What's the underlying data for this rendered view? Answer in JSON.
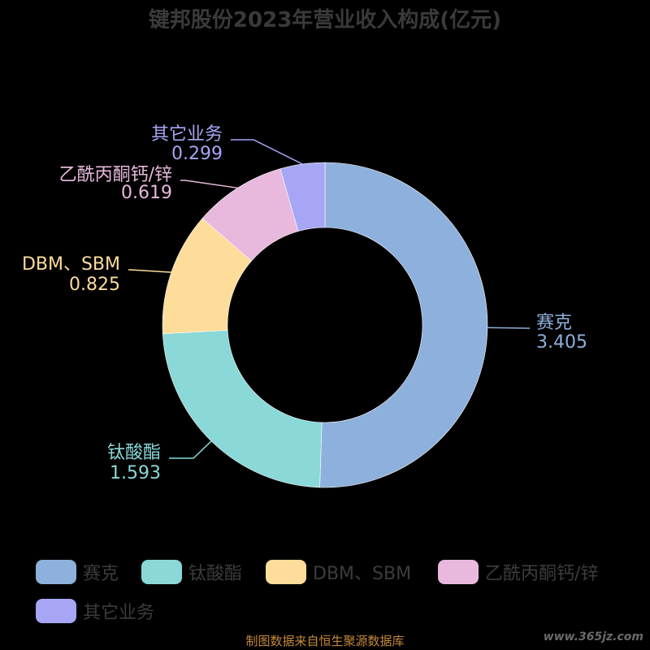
{
  "chart_data": {
    "type": "pie",
    "title": "键邦股份2023年营业收入构成(亿元)",
    "categories": [
      "赛克",
      "钛酸酯",
      "DBM、SBM",
      "乙酰丙酮钙/锌",
      "其它业务"
    ],
    "values": [
      3.405,
      1.593,
      0.825,
      0.619,
      0.299
    ],
    "value_labels": [
      "3.405",
      "1.593",
      "0.825",
      "0.619",
      "0.299"
    ],
    "colors": [
      "#8eb0dc",
      "#8ad8d8",
      "#fedc9a",
      "#e8b9dc",
      "#a6a6f5"
    ],
    "legend_position": "bottom",
    "donut": true
  },
  "footer": {
    "source": "制图数据来自恒生聚源数据库",
    "watermark": "www.365jz.com"
  }
}
